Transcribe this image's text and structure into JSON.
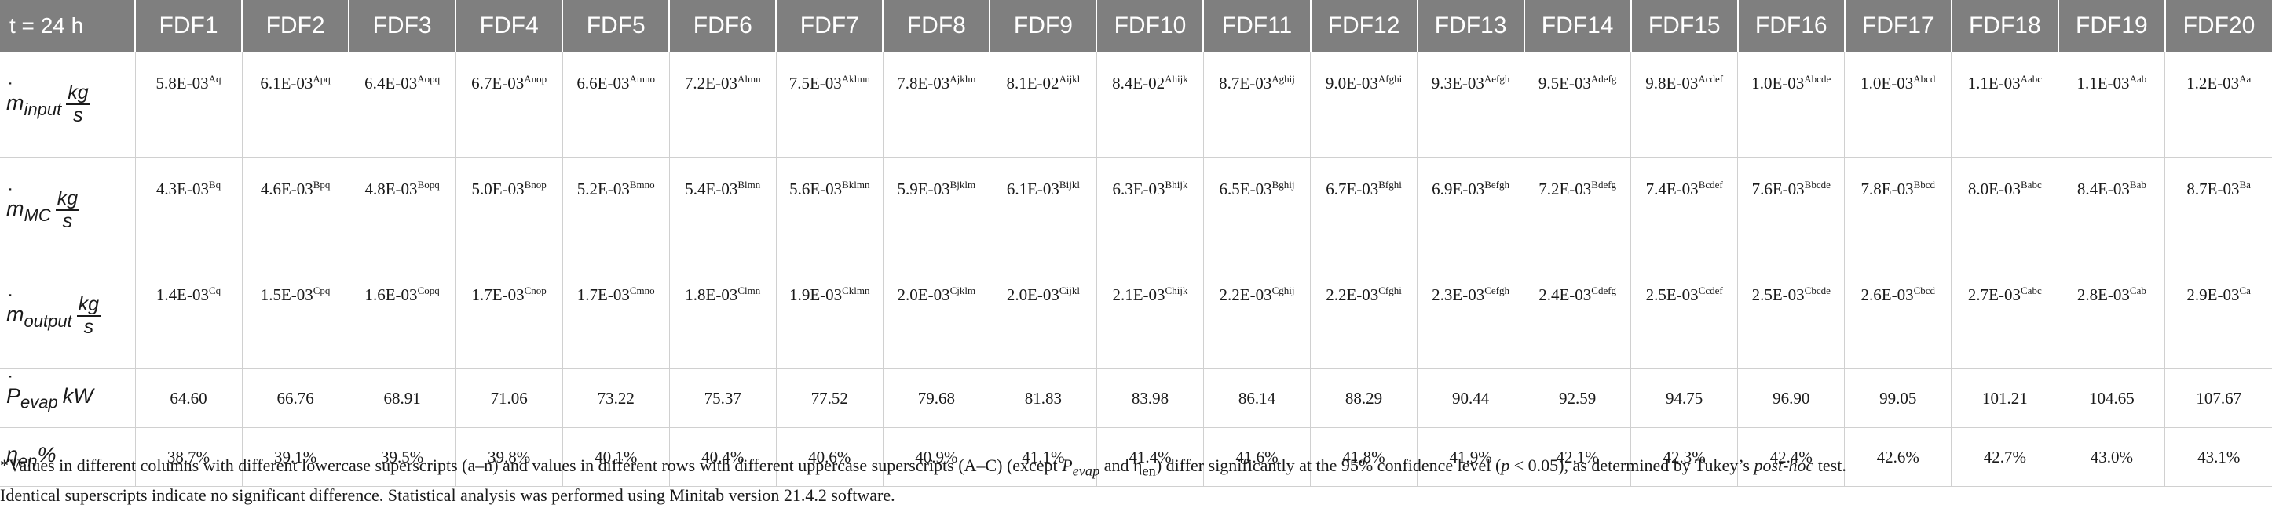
{
  "table": {
    "corner_label": "t = 24 h",
    "columns": [
      "FDF1",
      "FDF2",
      "FDF3",
      "FDF4",
      "FDF5",
      "FDF6",
      "FDF7",
      "FDF8",
      "FDF9",
      "FDF10",
      "FDF11",
      "FDF12",
      "FDF13",
      "FDF14",
      "FDF15",
      "FDF16",
      "FDF17",
      "FDF18",
      "FDF19",
      "FDF20"
    ],
    "rows": [
      {
        "label_var": "m",
        "label_sub": "input",
        "unit_num": "kg",
        "unit_den": "s",
        "cells": [
          {
            "v": "5.8E-03",
            "s": "Aq"
          },
          {
            "v": "6.1E-03",
            "s": "Apq"
          },
          {
            "v": "6.4E-03",
            "s": "Aopq"
          },
          {
            "v": "6.7E-03",
            "s": "Anop"
          },
          {
            "v": "6.6E-03",
            "s": "Amno"
          },
          {
            "v": "7.2E-03",
            "s": "Almn"
          },
          {
            "v": "7.5E-03",
            "s": "Aklmn"
          },
          {
            "v": "7.8E-03",
            "s": "Ajklm"
          },
          {
            "v": "8.1E-02",
            "s": "Aijkl"
          },
          {
            "v": "8.4E-02",
            "s": "Ahijk"
          },
          {
            "v": "8.7E-03",
            "s": "Aghij"
          },
          {
            "v": "9.0E-03",
            "s": "Afghi"
          },
          {
            "v": "9.3E-03",
            "s": "Aefgh"
          },
          {
            "v": "9.5E-03",
            "s": "Adefg"
          },
          {
            "v": "9.8E-03",
            "s": "Acdef"
          },
          {
            "v": "1.0E-03",
            "s": "Abcde"
          },
          {
            "v": "1.0E-03",
            "s": "Abcd"
          },
          {
            "v": "1.1E-03",
            "s": "Aabc"
          },
          {
            "v": "1.1E-03",
            "s": "Aab"
          },
          {
            "v": "1.2E-03",
            "s": "Aa"
          }
        ]
      },
      {
        "label_var": "m",
        "label_sub": "MC",
        "unit_num": "kg",
        "unit_den": "s",
        "cells": [
          {
            "v": "4.3E-03",
            "s": "Bq"
          },
          {
            "v": "4.6E-03",
            "s": "Bpq"
          },
          {
            "v": "4.8E-03",
            "s": "Bopq"
          },
          {
            "v": "5.0E-03",
            "s": "Bnop"
          },
          {
            "v": "5.2E-03",
            "s": "Bmno"
          },
          {
            "v": "5.4E-03",
            "s": "Blmn"
          },
          {
            "v": "5.6E-03",
            "s": "Bklmn"
          },
          {
            "v": "5.9E-03",
            "s": "Bjklm"
          },
          {
            "v": "6.1E-03",
            "s": "Bijkl"
          },
          {
            "v": "6.3E-03",
            "s": "Bhijk"
          },
          {
            "v": "6.5E-03",
            "s": "Bghij"
          },
          {
            "v": "6.7E-03",
            "s": "Bfghi"
          },
          {
            "v": "6.9E-03",
            "s": "Befgh"
          },
          {
            "v": "7.2E-03",
            "s": "Bdefg"
          },
          {
            "v": "7.4E-03",
            "s": "Bcdef"
          },
          {
            "v": "7.6E-03",
            "s": "Bbcde"
          },
          {
            "v": "7.8E-03",
            "s": "Bbcd"
          },
          {
            "v": "8.0E-03",
            "s": "Babc"
          },
          {
            "v": "8.4E-03",
            "s": "Bab"
          },
          {
            "v": "8.7E-03",
            "s": "Ba"
          }
        ]
      },
      {
        "label_var": "m",
        "label_sub": "output",
        "unit_num": "kg",
        "unit_den": "s",
        "cells": [
          {
            "v": "1.4E-03",
            "s": "Cq"
          },
          {
            "v": "1.5E-03",
            "s": "Cpq"
          },
          {
            "v": "1.6E-03",
            "s": "Copq"
          },
          {
            "v": "1.7E-03",
            "s": "Cnop"
          },
          {
            "v": "1.7E-03",
            "s": "Cmno"
          },
          {
            "v": "1.8E-03",
            "s": "Clmn"
          },
          {
            "v": "1.9E-03",
            "s": "Cklmn"
          },
          {
            "v": "2.0E-03",
            "s": "Cjklm"
          },
          {
            "v": "2.0E-03",
            "s": "Cijkl"
          },
          {
            "v": "2.1E-03",
            "s": "Chijk"
          },
          {
            "v": "2.2E-03",
            "s": "Cghij"
          },
          {
            "v": "2.2E-03",
            "s": "Cfghi"
          },
          {
            "v": "2.3E-03",
            "s": "Cefgh"
          },
          {
            "v": "2.4E-03",
            "s": "Cdefg"
          },
          {
            "v": "2.5E-03",
            "s": "Ccdef"
          },
          {
            "v": "2.5E-03",
            "s": "Cbcde"
          },
          {
            "v": "2.6E-03",
            "s": "Cbcd"
          },
          {
            "v": "2.7E-03",
            "s": "Cabc"
          },
          {
            "v": "2.8E-03",
            "s": "Cab"
          },
          {
            "v": "2.9E-03",
            "s": "Ca"
          }
        ]
      },
      {
        "label_var": "P",
        "label_sub": "evap",
        "unit_text": "kW",
        "cells": [
          {
            "v": "64.60"
          },
          {
            "v": "66.76"
          },
          {
            "v": "68.91"
          },
          {
            "v": "71.06"
          },
          {
            "v": "73.22"
          },
          {
            "v": "75.37"
          },
          {
            "v": "77.52"
          },
          {
            "v": "79.68"
          },
          {
            "v": "81.83"
          },
          {
            "v": "83.98"
          },
          {
            "v": "86.14"
          },
          {
            "v": "88.29"
          },
          {
            "v": "90.44"
          },
          {
            "v": "92.59"
          },
          {
            "v": "94.75"
          },
          {
            "v": "96.90"
          },
          {
            "v": "99.05"
          },
          {
            "v": "101.21"
          },
          {
            "v": "104.65"
          },
          {
            "v": "107.67"
          }
        ]
      },
      {
        "label_var": "η",
        "label_sub": "en",
        "unit_text": "%",
        "cells": [
          {
            "v": "38.7%"
          },
          {
            "v": "39.1%"
          },
          {
            "v": "39.5%"
          },
          {
            "v": "39.8%"
          },
          {
            "v": "40.1%"
          },
          {
            "v": "40.4%"
          },
          {
            "v": "40.6%"
          },
          {
            "v": "40.9%"
          },
          {
            "v": "41.1%"
          },
          {
            "v": "41.4%"
          },
          {
            "v": "41.6%"
          },
          {
            "v": "41.8%"
          },
          {
            "v": "41.9%"
          },
          {
            "v": "42.1%"
          },
          {
            "v": "42.3%"
          },
          {
            "v": "42.4%"
          },
          {
            "v": "42.6%"
          },
          {
            "v": "42.7%"
          },
          {
            "v": "43.0%"
          },
          {
            "v": "43.1%"
          }
        ]
      }
    ]
  },
  "footnote": {
    "part1": "*Values in different columns with different lowercase superscripts (a–n) and values in different rows with different uppercase superscripts (A–C) (except ",
    "pevap_var": "P",
    "pevap_sub": "evap",
    "part2": " and η",
    "eta_sub": "en",
    "part3": ") differ significantly at the 95% confidence level (",
    "p_var": "p",
    "part4": " < 0.05), as determined by Tukey’s ",
    "posthoc": "post-hoc",
    "part5": " test.",
    "line2": "Identical superscripts indicate no significant difference. Statistical analysis was performed using Minitab version 21.4.2 software."
  }
}
